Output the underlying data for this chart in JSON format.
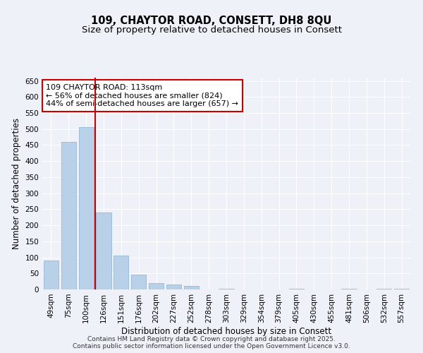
{
  "title_line1": "109, CHAYTOR ROAD, CONSETT, DH8 8QU",
  "title_line2": "Size of property relative to detached houses in Consett",
  "xlabel": "Distribution of detached houses by size in Consett",
  "ylabel": "Number of detached properties",
  "categories": [
    "49sqm",
    "75sqm",
    "100sqm",
    "126sqm",
    "151sqm",
    "176sqm",
    "202sqm",
    "227sqm",
    "252sqm",
    "278sqm",
    "303sqm",
    "329sqm",
    "354sqm",
    "379sqm",
    "405sqm",
    "430sqm",
    "455sqm",
    "481sqm",
    "506sqm",
    "532sqm",
    "557sqm"
  ],
  "values": [
    90,
    460,
    505,
    240,
    105,
    47,
    19,
    16,
    10,
    0,
    2,
    0,
    0,
    0,
    2,
    0,
    0,
    2,
    0,
    2,
    2
  ],
  "bar_color": "#b8d0e8",
  "bar_edge_color": "#8ab0d0",
  "vline_color": "#cc0000",
  "annotation_text": "109 CHAYTOR ROAD: 113sqm\n← 56% of detached houses are smaller (824)\n44% of semi-detached houses are larger (657) →",
  "annotation_box_color": "#ffffff",
  "annotation_box_edge_color": "#cc0000",
  "ylim": [
    0,
    660
  ],
  "yticks": [
    0,
    50,
    100,
    150,
    200,
    250,
    300,
    350,
    400,
    450,
    500,
    550,
    600,
    650
  ],
  "background_color": "#eef2f8",
  "grid_color": "#ffffff",
  "footer_text": "Contains HM Land Registry data © Crown copyright and database right 2025.\nContains public sector information licensed under the Open Government Licence v3.0.",
  "title_fontsize": 10.5,
  "subtitle_fontsize": 9.5,
  "axis_label_fontsize": 8.5,
  "tick_fontsize": 7.5,
  "annotation_fontsize": 8,
  "footer_fontsize": 6.5
}
